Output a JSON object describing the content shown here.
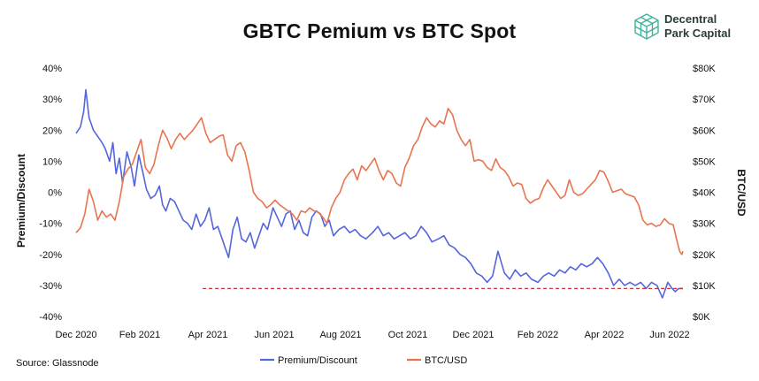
{
  "chart_data": {
    "type": "line",
    "title": "GBTC Pemium vs BTC Spot",
    "left_axis": {
      "label": "Premium/Discount",
      "ylim": [
        -40,
        40
      ],
      "ticks": [
        "40%",
        "30%",
        "20%",
        "10%",
        "0%",
        "-10%",
        "-20%",
        "-30%",
        "-40%"
      ]
    },
    "right_axis": {
      "label": "BTC/USD",
      "ylim": [
        0,
        80000
      ],
      "ticks": [
        "$80K",
        "$70K",
        "$60K",
        "$50K",
        "$40K",
        "$30K",
        "$20K",
        "$10K",
        "$0K"
      ]
    },
    "x_ticks": [
      "Dec 2020",
      "Feb 2021",
      "Apr 2021",
      "Jun 2021",
      "Aug 2021",
      "Oct 2021",
      "Dec 2021",
      "Feb 2022",
      "Apr 2022",
      "Jun 2022"
    ],
    "x_range": [
      "2020-12-01",
      "2022-06-15"
    ],
    "grid": false,
    "legend_position": "bottom",
    "series": [
      {
        "name": "Premium/Discount",
        "axis": "left",
        "color": "#5566dd",
        "points": [
          [
            "2020-12-01",
            19
          ],
          [
            "2020-12-05",
            21
          ],
          [
            "2020-12-08",
            26
          ],
          [
            "2020-12-10",
            33
          ],
          [
            "2020-12-13",
            24
          ],
          [
            "2020-12-17",
            20
          ],
          [
            "2020-12-21",
            18
          ],
          [
            "2020-12-25",
            16
          ],
          [
            "2020-12-28",
            14
          ],
          [
            "2021-01-01",
            10
          ],
          [
            "2021-01-04",
            16
          ],
          [
            "2021-01-07",
            6
          ],
          [
            "2021-01-10",
            11
          ],
          [
            "2021-01-13",
            3
          ],
          [
            "2021-01-17",
            13
          ],
          [
            "2021-01-21",
            8
          ],
          [
            "2021-01-24",
            2
          ],
          [
            "2021-01-28",
            12
          ],
          [
            "2021-02-01",
            6
          ],
          [
            "2021-02-04",
            1
          ],
          [
            "2021-02-08",
            -2
          ],
          [
            "2021-02-12",
            -1
          ],
          [
            "2021-02-16",
            2
          ],
          [
            "2021-02-19",
            -4
          ],
          [
            "2021-02-22",
            -6
          ],
          [
            "2021-02-26",
            -2
          ],
          [
            "2021-03-02",
            -3
          ],
          [
            "2021-03-06",
            -6
          ],
          [
            "2021-03-10",
            -9
          ],
          [
            "2021-03-14",
            -10
          ],
          [
            "2021-03-18",
            -12
          ],
          [
            "2021-03-22",
            -7
          ],
          [
            "2021-03-26",
            -11
          ],
          [
            "2021-03-30",
            -9
          ],
          [
            "2021-04-03",
            -5
          ],
          [
            "2021-04-07",
            -12
          ],
          [
            "2021-04-11",
            -11
          ],
          [
            "2021-04-14",
            -14
          ],
          [
            "2021-04-18",
            -18
          ],
          [
            "2021-04-21",
            -21
          ],
          [
            "2021-04-25",
            -12
          ],
          [
            "2021-04-29",
            -8
          ],
          [
            "2021-05-03",
            -15
          ],
          [
            "2021-05-07",
            -16
          ],
          [
            "2021-05-11",
            -13
          ],
          [
            "2021-05-15",
            -18
          ],
          [
            "2021-05-19",
            -14
          ],
          [
            "2021-05-23",
            -10
          ],
          [
            "2021-05-27",
            -12
          ],
          [
            "2021-06-01",
            -5
          ],
          [
            "2021-06-05",
            -8
          ],
          [
            "2021-06-09",
            -11
          ],
          [
            "2021-06-13",
            -7
          ],
          [
            "2021-06-17",
            -6
          ],
          [
            "2021-06-21",
            -12
          ],
          [
            "2021-06-25",
            -9
          ],
          [
            "2021-06-29",
            -13
          ],
          [
            "2021-07-03",
            -14
          ],
          [
            "2021-07-07",
            -8
          ],
          [
            "2021-07-11",
            -6
          ],
          [
            "2021-07-15",
            -7
          ],
          [
            "2021-07-19",
            -11
          ],
          [
            "2021-07-23",
            -9
          ],
          [
            "2021-07-27",
            -14
          ],
          [
            "2021-08-01",
            -12
          ],
          [
            "2021-08-06",
            -11
          ],
          [
            "2021-08-11",
            -13
          ],
          [
            "2021-08-16",
            -12
          ],
          [
            "2021-08-21",
            -14
          ],
          [
            "2021-08-26",
            -15
          ],
          [
            "2021-09-01",
            -13
          ],
          [
            "2021-09-06",
            -11
          ],
          [
            "2021-09-11",
            -14
          ],
          [
            "2021-09-16",
            -13
          ],
          [
            "2021-09-21",
            -15
          ],
          [
            "2021-09-26",
            -14
          ],
          [
            "2021-10-01",
            -13
          ],
          [
            "2021-10-06",
            -15
          ],
          [
            "2021-10-11",
            -14
          ],
          [
            "2021-10-16",
            -11
          ],
          [
            "2021-10-21",
            -13
          ],
          [
            "2021-10-26",
            -16
          ],
          [
            "2021-11-01",
            -15
          ],
          [
            "2021-11-06",
            -14
          ],
          [
            "2021-11-11",
            -17
          ],
          [
            "2021-11-16",
            -18
          ],
          [
            "2021-11-21",
            -20
          ],
          [
            "2021-11-26",
            -21
          ],
          [
            "2021-12-01",
            -23
          ],
          [
            "2021-12-06",
            -26
          ],
          [
            "2021-12-11",
            -27
          ],
          [
            "2021-12-16",
            -29
          ],
          [
            "2021-12-21",
            -27
          ],
          [
            "2021-12-26",
            -19
          ],
          [
            "2022-01-01",
            -26
          ],
          [
            "2022-01-06",
            -28
          ],
          [
            "2022-01-11",
            -25
          ],
          [
            "2022-01-16",
            -27
          ],
          [
            "2022-01-21",
            -26
          ],
          [
            "2022-01-26",
            -28
          ],
          [
            "2022-02-01",
            -29
          ],
          [
            "2022-02-06",
            -27
          ],
          [
            "2022-02-11",
            -26
          ],
          [
            "2022-02-16",
            -27
          ],
          [
            "2022-02-21",
            -25
          ],
          [
            "2022-02-26",
            -26
          ],
          [
            "2022-03-03",
            -24
          ],
          [
            "2022-03-08",
            -25
          ],
          [
            "2022-03-13",
            -23
          ],
          [
            "2022-03-18",
            -24
          ],
          [
            "2022-03-23",
            -23
          ],
          [
            "2022-03-28",
            -21
          ],
          [
            "2022-04-02",
            -23
          ],
          [
            "2022-04-07",
            -26
          ],
          [
            "2022-04-12",
            -30
          ],
          [
            "2022-04-17",
            -28
          ],
          [
            "2022-04-22",
            -30
          ],
          [
            "2022-04-27",
            -29
          ],
          [
            "2022-05-02",
            -30
          ],
          [
            "2022-05-07",
            -29
          ],
          [
            "2022-05-12",
            -31
          ],
          [
            "2022-05-17",
            -29
          ],
          [
            "2022-05-22",
            -30
          ],
          [
            "2022-05-27",
            -34
          ],
          [
            "2022-06-01",
            -29
          ],
          [
            "2022-06-05",
            -31
          ],
          [
            "2022-06-08",
            -32
          ],
          [
            "2022-06-11",
            -31
          ],
          [
            "2022-06-15",
            -31
          ]
        ]
      },
      {
        "name": "BTC/USD",
        "axis": "right",
        "color": "#e8744f",
        "points": [
          [
            "2020-12-01",
            27000
          ],
          [
            "2020-12-05",
            28500
          ],
          [
            "2020-12-09",
            33000
          ],
          [
            "2020-12-13",
            41000
          ],
          [
            "2020-12-17",
            37000
          ],
          [
            "2020-12-21",
            31000
          ],
          [
            "2020-12-25",
            34000
          ],
          [
            "2020-12-29",
            32000
          ],
          [
            "2021-01-02",
            33000
          ],
          [
            "2021-01-06",
            31000
          ],
          [
            "2021-01-10",
            37000
          ],
          [
            "2021-01-14",
            45000
          ],
          [
            "2021-01-18",
            47500
          ],
          [
            "2021-01-22",
            49000
          ],
          [
            "2021-01-26",
            53000
          ],
          [
            "2021-01-30",
            57000
          ],
          [
            "2021-02-03",
            48000
          ],
          [
            "2021-02-07",
            46000
          ],
          [
            "2021-02-11",
            49000
          ],
          [
            "2021-02-15",
            55000
          ],
          [
            "2021-02-19",
            60000
          ],
          [
            "2021-02-23",
            57500
          ],
          [
            "2021-02-27",
            54000
          ],
          [
            "2021-03-03",
            57000
          ],
          [
            "2021-03-07",
            59000
          ],
          [
            "2021-03-11",
            57000
          ],
          [
            "2021-03-15",
            58500
          ],
          [
            "2021-03-19",
            60000
          ],
          [
            "2021-03-23",
            62000
          ],
          [
            "2021-03-27",
            64000
          ],
          [
            "2021-03-31",
            59000
          ],
          [
            "2021-04-04",
            56000
          ],
          [
            "2021-04-08",
            57000
          ],
          [
            "2021-04-12",
            58000
          ],
          [
            "2021-04-16",
            58500
          ],
          [
            "2021-04-20",
            52000
          ],
          [
            "2021-04-24",
            50000
          ],
          [
            "2021-04-28",
            55000
          ],
          [
            "2021-05-02",
            56000
          ],
          [
            "2021-05-06",
            53000
          ],
          [
            "2021-05-10",
            47000
          ],
          [
            "2021-05-14",
            40000
          ],
          [
            "2021-05-18",
            38000
          ],
          [
            "2021-05-22",
            37000
          ],
          [
            "2021-05-26",
            35000
          ],
          [
            "2021-05-30",
            36000
          ],
          [
            "2021-06-03",
            37500
          ],
          [
            "2021-06-07",
            36000
          ],
          [
            "2021-06-11",
            35000
          ],
          [
            "2021-06-15",
            34000
          ],
          [
            "2021-06-19",
            33000
          ],
          [
            "2021-06-23",
            31000
          ],
          [
            "2021-06-27",
            34000
          ],
          [
            "2021-07-01",
            33500
          ],
          [
            "2021-07-05",
            35000
          ],
          [
            "2021-07-09",
            34000
          ],
          [
            "2021-07-13",
            33500
          ],
          [
            "2021-07-17",
            32000
          ],
          [
            "2021-07-21",
            30000
          ],
          [
            "2021-07-25",
            35000
          ],
          [
            "2021-07-29",
            38000
          ],
          [
            "2021-08-02",
            40000
          ],
          [
            "2021-08-06",
            44000
          ],
          [
            "2021-08-10",
            46000
          ],
          [
            "2021-08-14",
            47500
          ],
          [
            "2021-08-18",
            44000
          ],
          [
            "2021-08-22",
            48500
          ],
          [
            "2021-08-26",
            47000
          ],
          [
            "2021-08-30",
            49000
          ],
          [
            "2021-09-03",
            51000
          ],
          [
            "2021-09-07",
            47000
          ],
          [
            "2021-09-11",
            44000
          ],
          [
            "2021-09-15",
            47000
          ],
          [
            "2021-09-19",
            46000
          ],
          [
            "2021-09-23",
            43000
          ],
          [
            "2021-09-27",
            42000
          ],
          [
            "2021-10-01",
            48000
          ],
          [
            "2021-10-05",
            51000
          ],
          [
            "2021-10-09",
            55000
          ],
          [
            "2021-10-13",
            57000
          ],
          [
            "2021-10-17",
            61000
          ],
          [
            "2021-10-21",
            64000
          ],
          [
            "2021-10-25",
            62000
          ],
          [
            "2021-10-29",
            61000
          ],
          [
            "2021-11-02",
            63000
          ],
          [
            "2021-11-06",
            62000
          ],
          [
            "2021-11-10",
            67000
          ],
          [
            "2021-11-14",
            65000
          ],
          [
            "2021-11-18",
            60000
          ],
          [
            "2021-11-22",
            57000
          ],
          [
            "2021-11-26",
            55000
          ],
          [
            "2021-11-30",
            57000
          ],
          [
            "2021-12-04",
            50000
          ],
          [
            "2021-12-08",
            50500
          ],
          [
            "2021-12-12",
            50000
          ],
          [
            "2021-12-16",
            48000
          ],
          [
            "2021-12-20",
            47000
          ],
          [
            "2021-12-24",
            50800
          ],
          [
            "2021-12-28",
            48000
          ],
          [
            "2022-01-01",
            47000
          ],
          [
            "2022-01-05",
            45000
          ],
          [
            "2022-01-09",
            42000
          ],
          [
            "2022-01-13",
            43000
          ],
          [
            "2022-01-17",
            42500
          ],
          [
            "2022-01-21",
            38000
          ],
          [
            "2022-01-25",
            36500
          ],
          [
            "2022-01-29",
            37500
          ],
          [
            "2022-02-02",
            38000
          ],
          [
            "2022-02-06",
            41500
          ],
          [
            "2022-02-10",
            44000
          ],
          [
            "2022-02-14",
            42000
          ],
          [
            "2022-02-18",
            40000
          ],
          [
            "2022-02-22",
            38000
          ],
          [
            "2022-02-26",
            39000
          ],
          [
            "2022-03-02",
            44000
          ],
          [
            "2022-03-06",
            40000
          ],
          [
            "2022-03-10",
            39000
          ],
          [
            "2022-03-14",
            39500
          ],
          [
            "2022-03-18",
            41000
          ],
          [
            "2022-03-22",
            42500
          ],
          [
            "2022-03-26",
            44000
          ],
          [
            "2022-03-30",
            47000
          ],
          [
            "2022-04-03",
            46500
          ],
          [
            "2022-04-07",
            43500
          ],
          [
            "2022-04-11",
            40000
          ],
          [
            "2022-04-15",
            40500
          ],
          [
            "2022-04-19",
            41000
          ],
          [
            "2022-04-23",
            39500
          ],
          [
            "2022-04-27",
            39000
          ],
          [
            "2022-05-01",
            38500
          ],
          [
            "2022-05-05",
            36000
          ],
          [
            "2022-05-09",
            31000
          ],
          [
            "2022-05-13",
            29500
          ],
          [
            "2022-05-17",
            30000
          ],
          [
            "2022-05-21",
            29000
          ],
          [
            "2022-05-25",
            29500
          ],
          [
            "2022-05-29",
            31500
          ],
          [
            "2022-06-02",
            30000
          ],
          [
            "2022-06-06",
            29500
          ],
          [
            "2022-06-09",
            25000
          ],
          [
            "2022-06-12",
            21000
          ],
          [
            "2022-06-14",
            20000
          ],
          [
            "2022-06-15",
            21000
          ]
        ]
      }
    ],
    "reference_line": {
      "axis": "left",
      "value": -31,
      "x_start": "2021-03-28",
      "x_end": "2022-06-15",
      "style": "dashed",
      "color": "#cc3333"
    },
    "source": "Source: Glassnode"
  },
  "branding": {
    "logo_line1": "Decentral",
    "logo_line2": "Park Capital"
  }
}
